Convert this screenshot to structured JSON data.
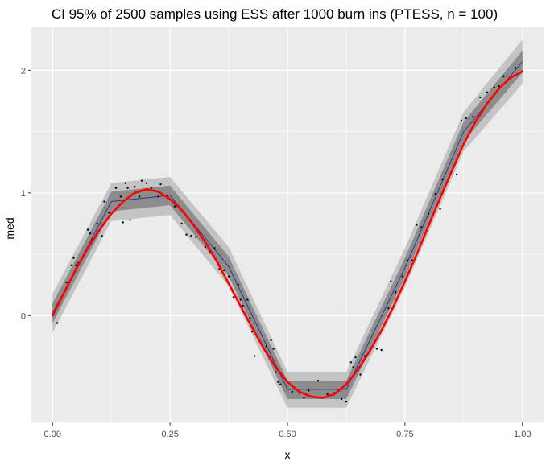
{
  "chart_data": {
    "type": "line",
    "title": "CI 95% of 2500 samples using ESS after 1000 burn ins (PTESS, n = 100)",
    "xlabel": "x",
    "ylabel": "med",
    "xlim": [
      -0.045,
      1.045
    ],
    "ylim": [
      -0.87,
      2.35
    ],
    "x_ticks": [
      0.0,
      0.25,
      0.5,
      0.75,
      1.0
    ],
    "x_tick_labels": [
      "0.00",
      "0.25",
      "0.50",
      "0.75",
      "1.00"
    ],
    "y_ticks": [
      0,
      1,
      2
    ],
    "y_tick_labels": [
      "0",
      "1",
      "2"
    ],
    "grid": true,
    "legend": "none",
    "colors": {
      "panel": "#ebebeb",
      "grid": "#ffffff",
      "outer_band": "#c4c4c4",
      "inner_band": "#8c8c8c",
      "median_line": "#2c3a8c",
      "true_curve": "#ff0000",
      "points": "#000000"
    },
    "band_knots": [
      {
        "x": 0.0,
        "median": 0.02,
        "inner": [
          -0.06,
          0.1
        ],
        "outer": [
          -0.14,
          0.18
        ]
      },
      {
        "x": 0.125,
        "median": 0.93,
        "inner": [
          0.85,
          1.01
        ],
        "outer": [
          0.77,
          1.08
        ]
      },
      {
        "x": 0.25,
        "median": 0.98,
        "inner": [
          0.9,
          1.06
        ],
        "outer": [
          0.82,
          1.13
        ]
      },
      {
        "x": 0.375,
        "median": 0.4,
        "inner": [
          0.32,
          0.48
        ],
        "outer": [
          0.24,
          0.56
        ]
      },
      {
        "x": 0.5,
        "median": -0.6,
        "inner": [
          -0.68,
          -0.53
        ],
        "outer": [
          -0.75,
          -0.46
        ]
      },
      {
        "x": 0.625,
        "median": -0.6,
        "inner": [
          -0.68,
          -0.53
        ],
        "outer": [
          -0.75,
          -0.46
        ]
      },
      {
        "x": 0.75,
        "median": 0.39,
        "inner": [
          0.31,
          0.47
        ],
        "outer": [
          0.23,
          0.55
        ]
      },
      {
        "x": 0.875,
        "median": 1.5,
        "inner": [
          1.42,
          1.58
        ],
        "outer": [
          1.34,
          1.66
        ]
      },
      {
        "x": 1.0,
        "median": 2.07,
        "inner": [
          1.98,
          2.16
        ],
        "outer": [
          1.89,
          2.25
        ]
      }
    ],
    "true_function": [
      {
        "x": 0.0,
        "y": 0.0
      },
      {
        "x": 0.025,
        "y": 0.19
      },
      {
        "x": 0.05,
        "y": 0.38
      },
      {
        "x": 0.075,
        "y": 0.55
      },
      {
        "x": 0.1,
        "y": 0.7
      },
      {
        "x": 0.125,
        "y": 0.83
      },
      {
        "x": 0.15,
        "y": 0.93
      },
      {
        "x": 0.175,
        "y": 1.0
      },
      {
        "x": 0.2,
        "y": 1.03
      },
      {
        "x": 0.225,
        "y": 1.01
      },
      {
        "x": 0.25,
        "y": 0.95
      },
      {
        "x": 0.275,
        "y": 0.86
      },
      {
        "x": 0.3,
        "y": 0.74
      },
      {
        "x": 0.325,
        "y": 0.6
      },
      {
        "x": 0.35,
        "y": 0.44
      },
      {
        "x": 0.375,
        "y": 0.26
      },
      {
        "x": 0.4,
        "y": 0.08
      },
      {
        "x": 0.425,
        "y": -0.1
      },
      {
        "x": 0.45,
        "y": -0.27
      },
      {
        "x": 0.475,
        "y": -0.42
      },
      {
        "x": 0.5,
        "y": -0.54
      },
      {
        "x": 0.525,
        "y": -0.62
      },
      {
        "x": 0.55,
        "y": -0.66
      },
      {
        "x": 0.575,
        "y": -0.67
      },
      {
        "x": 0.6,
        "y": -0.64
      },
      {
        "x": 0.625,
        "y": -0.56
      },
      {
        "x": 0.65,
        "y": -0.44
      },
      {
        "x": 0.675,
        "y": -0.29
      },
      {
        "x": 0.7,
        "y": -0.12
      },
      {
        "x": 0.725,
        "y": 0.07
      },
      {
        "x": 0.75,
        "y": 0.28
      },
      {
        "x": 0.775,
        "y": 0.5
      },
      {
        "x": 0.8,
        "y": 0.73
      },
      {
        "x": 0.825,
        "y": 0.96
      },
      {
        "x": 0.85,
        "y": 1.18
      },
      {
        "x": 0.875,
        "y": 1.4
      },
      {
        "x": 0.9,
        "y": 1.58
      },
      {
        "x": 0.925,
        "y": 1.73
      },
      {
        "x": 0.95,
        "y": 1.85
      },
      {
        "x": 0.975,
        "y": 1.94
      },
      {
        "x": 1.0,
        "y": 1.99
      }
    ],
    "points": [
      {
        "x": 0.0,
        "y": 0.01
      },
      {
        "x": 0.01,
        "y": -0.06
      },
      {
        "x": 0.03,
        "y": 0.27
      },
      {
        "x": 0.04,
        "y": 0.41
      },
      {
        "x": 0.045,
        "y": 0.47
      },
      {
        "x": 0.05,
        "y": 0.41
      },
      {
        "x": 0.055,
        "y": 0.43
      },
      {
        "x": 0.075,
        "y": 0.7
      },
      {
        "x": 0.08,
        "y": 0.67
      },
      {
        "x": 0.085,
        "y": 0.62
      },
      {
        "x": 0.095,
        "y": 0.75
      },
      {
        "x": 0.105,
        "y": 0.65
      },
      {
        "x": 0.11,
        "y": 0.93
      },
      {
        "x": 0.12,
        "y": 0.84
      },
      {
        "x": 0.135,
        "y": 1.04
      },
      {
        "x": 0.145,
        "y": 0.97
      },
      {
        "x": 0.15,
        "y": 0.76
      },
      {
        "x": 0.155,
        "y": 1.08
      },
      {
        "x": 0.16,
        "y": 1.04
      },
      {
        "x": 0.165,
        "y": 0.78
      },
      {
        "x": 0.175,
        "y": 1.05
      },
      {
        "x": 0.185,
        "y": 0.97
      },
      {
        "x": 0.19,
        "y": 1.1
      },
      {
        "x": 0.2,
        "y": 1.08
      },
      {
        "x": 0.21,
        "y": 1.04
      },
      {
        "x": 0.225,
        "y": 0.97
      },
      {
        "x": 0.23,
        "y": 1.07
      },
      {
        "x": 0.245,
        "y": 0.98
      },
      {
        "x": 0.26,
        "y": 0.89
      },
      {
        "x": 0.275,
        "y": 0.75
      },
      {
        "x": 0.285,
        "y": 0.66
      },
      {
        "x": 0.295,
        "y": 0.65
      },
      {
        "x": 0.305,
        "y": 0.64
      },
      {
        "x": 0.325,
        "y": 0.56
      },
      {
        "x": 0.335,
        "y": 0.52
      },
      {
        "x": 0.345,
        "y": 0.55
      },
      {
        "x": 0.355,
        "y": 0.38
      },
      {
        "x": 0.365,
        "y": 0.37
      },
      {
        "x": 0.375,
        "y": 0.32
      },
      {
        "x": 0.385,
        "y": 0.15
      },
      {
        "x": 0.395,
        "y": 0.25
      },
      {
        "x": 0.4,
        "y": 0.13
      },
      {
        "x": 0.405,
        "y": 0.08
      },
      {
        "x": 0.415,
        "y": 0.13
      },
      {
        "x": 0.42,
        "y": -0.02
      },
      {
        "x": 0.425,
        "y": -0.13
      },
      {
        "x": 0.43,
        "y": -0.33
      },
      {
        "x": 0.44,
        "y": -0.2
      },
      {
        "x": 0.455,
        "y": -0.25
      },
      {
        "x": 0.465,
        "y": -0.2
      },
      {
        "x": 0.47,
        "y": -0.27
      },
      {
        "x": 0.475,
        "y": -0.46
      },
      {
        "x": 0.48,
        "y": -0.54
      },
      {
        "x": 0.485,
        "y": -0.56
      },
      {
        "x": 0.51,
        "y": -0.62
      },
      {
        "x": 0.525,
        "y": -0.63
      },
      {
        "x": 0.535,
        "y": -0.67
      },
      {
        "x": 0.545,
        "y": -0.61
      },
      {
        "x": 0.565,
        "y": -0.53
      },
      {
        "x": 0.585,
        "y": -0.64
      },
      {
        "x": 0.6,
        "y": -0.63
      },
      {
        "x": 0.615,
        "y": -0.68
      },
      {
        "x": 0.625,
        "y": -0.7
      },
      {
        "x": 0.635,
        "y": -0.38
      },
      {
        "x": 0.64,
        "y": -0.42
      },
      {
        "x": 0.645,
        "y": -0.34
      },
      {
        "x": 0.655,
        "y": -0.48
      },
      {
        "x": 0.665,
        "y": -0.33
      },
      {
        "x": 0.675,
        "y": -0.29
      },
      {
        "x": 0.69,
        "y": -0.27
      },
      {
        "x": 0.7,
        "y": -0.28
      },
      {
        "x": 0.715,
        "y": 0.06
      },
      {
        "x": 0.72,
        "y": 0.28
      },
      {
        "x": 0.73,
        "y": 0.19
      },
      {
        "x": 0.745,
        "y": 0.32
      },
      {
        "x": 0.755,
        "y": 0.45
      },
      {
        "x": 0.765,
        "y": 0.45
      },
      {
        "x": 0.775,
        "y": 0.74
      },
      {
        "x": 0.785,
        "y": 0.72
      },
      {
        "x": 0.8,
        "y": 0.83
      },
      {
        "x": 0.815,
        "y": 0.99
      },
      {
        "x": 0.825,
        "y": 0.87
      },
      {
        "x": 0.83,
        "y": 1.11
      },
      {
        "x": 0.86,
        "y": 1.15
      },
      {
        "x": 0.87,
        "y": 1.59
      },
      {
        "x": 0.88,
        "y": 1.61
      },
      {
        "x": 0.895,
        "y": 1.62
      },
      {
        "x": 0.91,
        "y": 1.78
      },
      {
        "x": 0.925,
        "y": 1.82
      },
      {
        "x": 0.94,
        "y": 1.86
      },
      {
        "x": 0.95,
        "y": 1.87
      },
      {
        "x": 0.96,
        "y": 1.95
      },
      {
        "x": 0.975,
        "y": 1.94
      },
      {
        "x": 0.985,
        "y": 2.02
      },
      {
        "x": 1.0,
        "y": 1.99
      }
    ]
  }
}
